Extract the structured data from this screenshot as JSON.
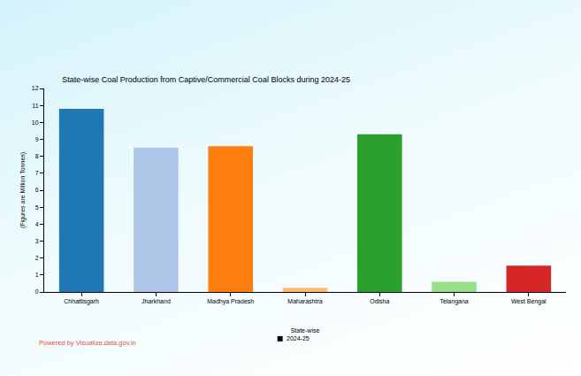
{
  "chart_data": {
    "type": "bar",
    "title": "State-wise Coal Production from Captive/Commercial Coal Blocks during 2024-25",
    "x_label": "State-wise",
    "y_label": "(Figures are Million Tonnes)",
    "categories": [
      "Chhattisgarh",
      "Jharkhand",
      "Madhya Pradesh",
      "Maharashtra",
      "Odisha",
      "Telangana",
      "West Bengal"
    ],
    "series": [
      {
        "name": "2024-25",
        "color": "#000000",
        "values": [
          10.8,
          8.5,
          8.6,
          0.25,
          9.3,
          0.6,
          1.55
        ],
        "colors": [
          "#1f77b4",
          "#aec7e8",
          "#ff7f0e",
          "#ffbb78",
          "#2ca02c",
          "#98df8a",
          "#d62728"
        ]
      }
    ],
    "ylim": [
      0,
      12
    ],
    "yticks": [
      0,
      1,
      2,
      3,
      4,
      5,
      6,
      7,
      8,
      9,
      10,
      11,
      12
    ],
    "grid": false,
    "legend": "bottom",
    "annotations": [
      "Powered by Visualize.data.gov.in"
    ]
  }
}
